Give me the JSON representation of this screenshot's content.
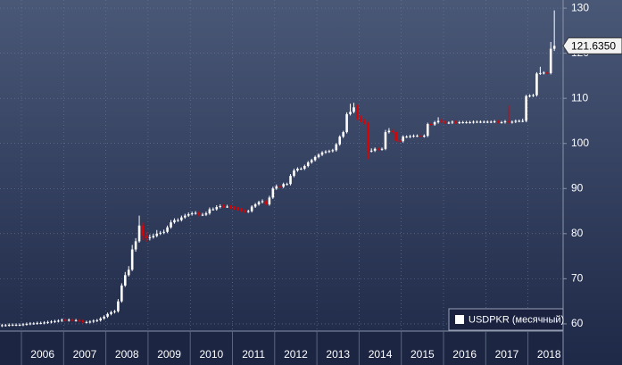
{
  "chart_data": {
    "type": "candlestick",
    "legend": "USDPKR (месячный)",
    "last_label": "121.6350",
    "x_labels": [
      "2006",
      "2007",
      "2008",
      "2009",
      "2010",
      "2011",
      "2012",
      "2013",
      "2014",
      "2015",
      "2016",
      "2017",
      "2018"
    ],
    "up_color": "#ffffff",
    "down_color": "#e00000",
    "ylim": [
      58.4,
      131.8
    ],
    "yticks": [
      60,
      70,
      80,
      90,
      100,
      110,
      120,
      130
    ],
    "grid": true,
    "open": [
      59.6,
      59.7,
      59.7,
      59.8,
      59.8,
      59.8,
      59.8,
      59.9,
      60.0,
      60.1,
      60.1,
      60.2,
      60.2,
      60.3,
      60.4,
      60.5,
      60.6,
      60.7,
      60.9,
      60.8,
      60.9,
      60.8,
      60.8,
      60.7,
      60.4,
      60.4,
      60.5,
      60.7,
      60.8,
      61.2,
      61.6,
      62.2,
      62.6,
      62.8,
      65.0,
      68.5,
      70.8,
      72.0,
      76.5,
      78.3,
      81.8,
      79.5,
      79.0,
      79.2,
      79.5,
      80.0,
      80.2,
      80.4,
      81.4,
      82.5,
      83.0,
      83.0,
      83.6,
      84.0,
      84.3,
      84.5,
      84.6,
      84.2,
      84.2,
      84.5,
      85.4,
      85.4,
      85.9,
      86.1,
      86.0,
      86.0,
      85.8,
      85.6,
      85.4,
      85.1,
      84.9,
      85.0,
      86.0,
      86.5,
      87.0,
      87.2,
      86.5,
      88.0,
      90.0,
      90.5,
      90.4,
      91.0,
      91.0,
      92.8,
      94.0,
      94.4,
      94.4,
      95.0,
      95.8,
      96.3,
      97.0,
      97.5,
      98.0,
      98.2,
      98.3,
      98.5,
      99.8,
      101.5,
      102.5,
      106.5,
      107.0,
      108.0,
      105.5,
      105.0,
      104.5,
      98.3,
      98.4,
      98.8,
      98.7,
      98.8,
      102.5,
      102.8,
      102.5,
      100.6,
      100.5,
      101.5,
      101.5,
      101.6,
      101.7,
      101.7,
      101.6,
      101.7,
      104.3,
      104.2,
      104.7,
      105.0,
      104.8,
      104.6,
      104.6,
      104.8,
      104.6,
      104.7,
      104.7,
      104.7,
      104.7,
      104.8,
      104.8,
      104.8,
      104.8,
      104.8,
      104.8,
      104.9,
      104.7,
      104.7,
      104.9,
      104.7,
      104.8,
      105.0,
      105.0,
      105.0,
      110.5,
      110.6,
      110.7,
      115.5,
      115.6,
      115.7,
      115.6,
      121.0
    ],
    "high": [
      60.0,
      60.0,
      60.1,
      60.1,
      60.1,
      60.1,
      60.2,
      60.3,
      60.4,
      60.4,
      60.5,
      60.5,
      60.6,
      60.7,
      60.8,
      60.9,
      61.0,
      61.2,
      61.2,
      61.2,
      61.2,
      61.1,
      61.1,
      61.0,
      60.7,
      60.8,
      61.0,
      61.1,
      61.5,
      61.9,
      62.5,
      62.9,
      63.1,
      65.5,
      69.0,
      71.5,
      72.8,
      77.5,
      79.0,
      84.0,
      82.5,
      80.5,
      79.8,
      80.0,
      80.8,
      80.6,
      80.9,
      81.8,
      83.0,
      83.4,
      83.4,
      84.0,
      84.4,
      84.7,
      84.9,
      85.0,
      85.0,
      84.6,
      84.9,
      85.8,
      85.8,
      86.3,
      86.5,
      86.5,
      86.4,
      86.3,
      86.1,
      85.9,
      85.7,
      85.4,
      85.3,
      86.3,
      86.8,
      87.3,
      87.6,
      87.5,
      88.4,
      90.4,
      90.9,
      90.8,
      91.3,
      91.3,
      93.2,
      94.4,
      94.7,
      94.7,
      95.3,
      96.1,
      96.6,
      97.3,
      97.8,
      98.3,
      98.5,
      98.6,
      98.8,
      100.1,
      101.8,
      102.8,
      106.9,
      108.8,
      109.0,
      108.6,
      106.2,
      105.4,
      104.8,
      98.9,
      99.1,
      99.1,
      99.1,
      103.0,
      103.4,
      103.2,
      102.8,
      101.0,
      101.8,
      101.8,
      101.9,
      102.0,
      102.0,
      102.0,
      102.0,
      104.6,
      104.6,
      105.0,
      105.8,
      105.5,
      105.1,
      104.9,
      105.1,
      105.1,
      105.0,
      105.0,
      105.0,
      105.0,
      105.1,
      105.1,
      105.1,
      105.1,
      105.1,
      105.1,
      105.2,
      105.2,
      105.0,
      105.2,
      108.4,
      105.1,
      105.3,
      105.3,
      105.5,
      110.8,
      110.9,
      111.0,
      115.8,
      117.0,
      116.0,
      116.0,
      122.5,
      129.5
    ],
    "low": [
      59.3,
      59.4,
      59.4,
      59.5,
      59.5,
      59.5,
      59.5,
      59.6,
      59.7,
      59.8,
      59.8,
      59.9,
      59.9,
      60.0,
      60.1,
      60.2,
      60.3,
      60.4,
      60.5,
      60.5,
      60.5,
      60.5,
      60.4,
      60.1,
      60.1,
      60.1,
      60.2,
      60.4,
      60.5,
      60.9,
      61.3,
      61.9,
      62.3,
      62.5,
      64.7,
      68.2,
      70.5,
      71.7,
      76.0,
      78.0,
      78.5,
      78.2,
      78.5,
      78.9,
      79.2,
      79.7,
      79.9,
      80.1,
      81.1,
      82.2,
      82.6,
      82.7,
      83.3,
      83.7,
      84.0,
      84.2,
      83.8,
      83.9,
      83.9,
      84.2,
      85.1,
      85.1,
      85.6,
      85.7,
      85.7,
      85.5,
      85.3,
      85.1,
      84.8,
      84.6,
      84.6,
      84.7,
      85.7,
      86.2,
      86.7,
      86.2,
      86.2,
      87.7,
      89.7,
      90.1,
      90.1,
      90.7,
      90.7,
      92.5,
      93.7,
      94.1,
      94.1,
      94.7,
      95.5,
      96.0,
      96.7,
      97.2,
      97.7,
      97.9,
      98.0,
      98.2,
      99.5,
      101.2,
      102.2,
      106.2,
      106.7,
      105.2,
      104.7,
      104.2,
      96.5,
      98.0,
      98.1,
      98.4,
      98.4,
      98.5,
      102.2,
      102.2,
      100.3,
      100.2,
      100.2,
      101.2,
      101.2,
      101.3,
      101.4,
      101.3,
      101.3,
      101.4,
      103.9,
      103.9,
      104.4,
      104.5,
      104.3,
      104.3,
      104.3,
      104.3,
      104.3,
      104.4,
      104.4,
      104.4,
      104.4,
      104.5,
      104.5,
      104.5,
      104.5,
      104.5,
      104.5,
      104.4,
      104.4,
      104.4,
      104.4,
      104.4,
      104.5,
      104.7,
      104.7,
      104.7,
      110.2,
      110.3,
      110.4,
      115.2,
      115.3,
      115.3,
      115.3,
      120.5
    ],
    "close": [
      59.7,
      59.7,
      59.8,
      59.8,
      59.8,
      59.8,
      59.9,
      60.0,
      60.1,
      60.1,
      60.2,
      60.2,
      60.3,
      60.4,
      60.5,
      60.6,
      60.7,
      60.9,
      60.8,
      60.9,
      60.8,
      60.8,
      60.7,
      60.4,
      60.4,
      60.5,
      60.7,
      60.8,
      61.2,
      61.6,
      62.2,
      62.6,
      62.8,
      65.0,
      68.5,
      70.8,
      72.0,
      76.5,
      78.3,
      81.8,
      79.5,
      79.0,
      79.2,
      79.5,
      80.0,
      80.2,
      80.4,
      81.4,
      82.5,
      83.0,
      83.0,
      83.6,
      84.0,
      84.3,
      84.5,
      84.6,
      84.2,
      84.2,
      84.5,
      85.4,
      85.4,
      85.9,
      86.1,
      86.0,
      86.0,
      85.8,
      85.6,
      85.4,
      85.1,
      84.9,
      85.0,
      86.0,
      86.5,
      87.0,
      87.2,
      86.5,
      88.0,
      90.0,
      90.5,
      90.4,
      91.0,
      91.0,
      92.8,
      94.0,
      94.4,
      94.4,
      95.0,
      95.8,
      96.3,
      97.0,
      97.5,
      98.0,
      98.2,
      98.3,
      98.5,
      99.8,
      101.5,
      102.5,
      106.5,
      107.0,
      108.0,
      105.5,
      105.0,
      104.5,
      98.3,
      98.4,
      98.8,
      98.7,
      98.8,
      102.5,
      102.8,
      102.5,
      100.6,
      100.5,
      101.5,
      101.5,
      101.6,
      101.7,
      101.7,
      101.6,
      101.7,
      104.3,
      104.2,
      104.7,
      105.0,
      104.8,
      104.6,
      104.6,
      104.8,
      104.6,
      104.7,
      104.7,
      104.7,
      104.7,
      104.8,
      104.8,
      104.8,
      104.8,
      104.8,
      104.8,
      104.9,
      104.7,
      104.7,
      104.9,
      104.7,
      104.8,
      105.0,
      105.0,
      105.0,
      110.5,
      110.6,
      110.7,
      115.5,
      115.6,
      115.7,
      115.6,
      121.0,
      121.635
    ]
  }
}
